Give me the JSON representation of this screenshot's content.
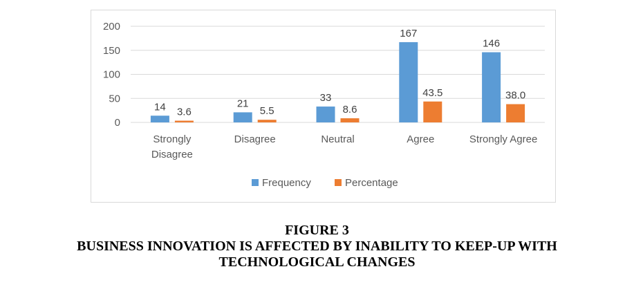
{
  "chart_data": {
    "type": "bar",
    "categories": [
      [
        "Strongly",
        "Disagree"
      ],
      [
        "Disagree"
      ],
      [
        "Neutral"
      ],
      [
        "Agree"
      ],
      [
        "Strongly Agree"
      ]
    ],
    "series": [
      {
        "name": "Frequency",
        "values": [
          14,
          21,
          33,
          167,
          146
        ],
        "labels": [
          "14",
          "21",
          "33",
          "167",
          "146"
        ],
        "color": "#5b9bd5"
      },
      {
        "name": "Percentage",
        "values": [
          3.6,
          5.5,
          8.6,
          43.5,
          38.0
        ],
        "labels": [
          "3.6",
          "5.5",
          "8.6",
          "43.5",
          "38.0"
        ],
        "color": "#ed7d31"
      }
    ],
    "yticks": [
      "0",
      "50",
      "100",
      "150",
      "200"
    ],
    "ylim": [
      0,
      200
    ],
    "grid": true,
    "gridColor": "#d9d9d9",
    "legend": "bottom"
  },
  "caption": {
    "figure": "FIGURE 3",
    "line1": "BUSINESS INNOVATION IS AFFECTED BY INABILITY TO KEEP-UP WITH",
    "line2": "TECHNOLOGICAL CHANGES"
  }
}
